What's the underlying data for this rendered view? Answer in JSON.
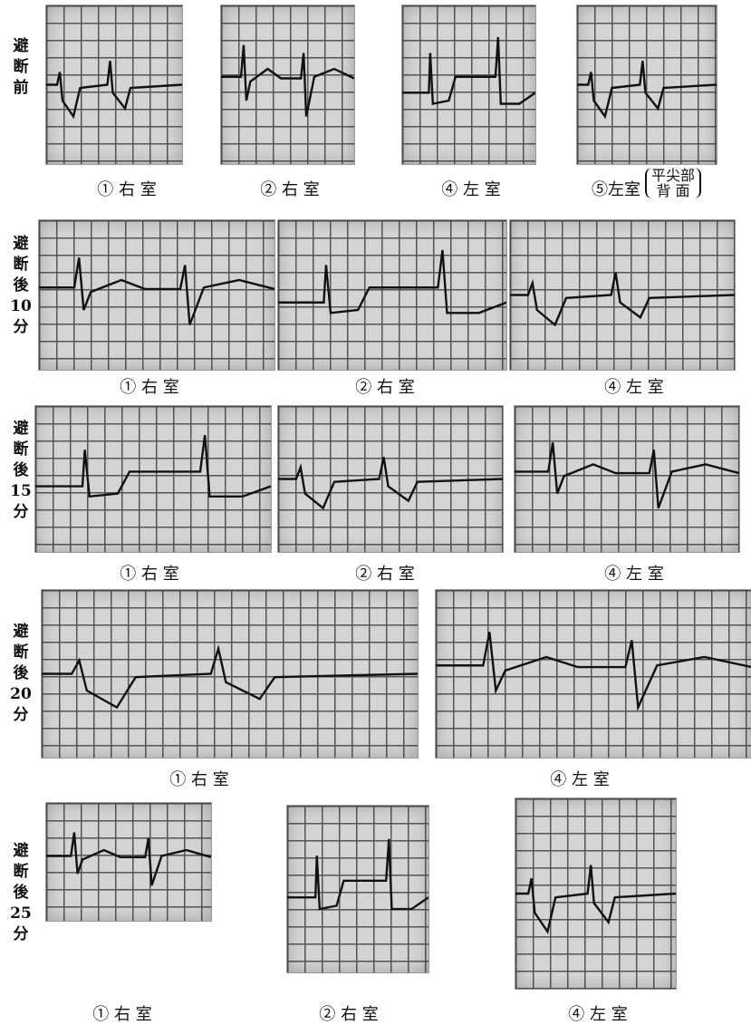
{
  "figure": {
    "rows": [
      {
        "label": [
          "避",
          "断",
          "前"
        ],
        "panels": [
          {
            "caption": "① 右 室"
          },
          {
            "caption": "② 右 室"
          },
          {
            "caption": "④ 左 室"
          },
          {
            "caption": "⑤左室",
            "note": [
              "平尖部",
              "背 面"
            ]
          }
        ]
      },
      {
        "label": [
          "避",
          "断",
          "後",
          "10",
          "分"
        ],
        "panels": [
          {
            "caption": "① 右 室"
          },
          {
            "caption": "② 右 室"
          },
          {
            "caption": "④ 左 室"
          }
        ]
      },
      {
        "label": [
          "避",
          "断",
          "後",
          "15",
          "分"
        ],
        "panels": [
          {
            "caption": "① 右 室"
          },
          {
            "caption": "② 右 室"
          },
          {
            "caption": "④ 左 室"
          }
        ]
      },
      {
        "label": [
          "避",
          "断",
          "後",
          "20",
          "分"
        ],
        "panels": [
          {
            "caption": "① 右 室"
          },
          {
            "caption": "④ 左 室"
          }
        ]
      },
      {
        "label": [
          "避",
          "断",
          "後",
          "25",
          "分"
        ],
        "panels": [
          {
            "caption": "① 右 室"
          },
          {
            "caption": "② 右 室"
          },
          {
            "caption": "④ 左 室"
          }
        ]
      }
    ]
  }
}
